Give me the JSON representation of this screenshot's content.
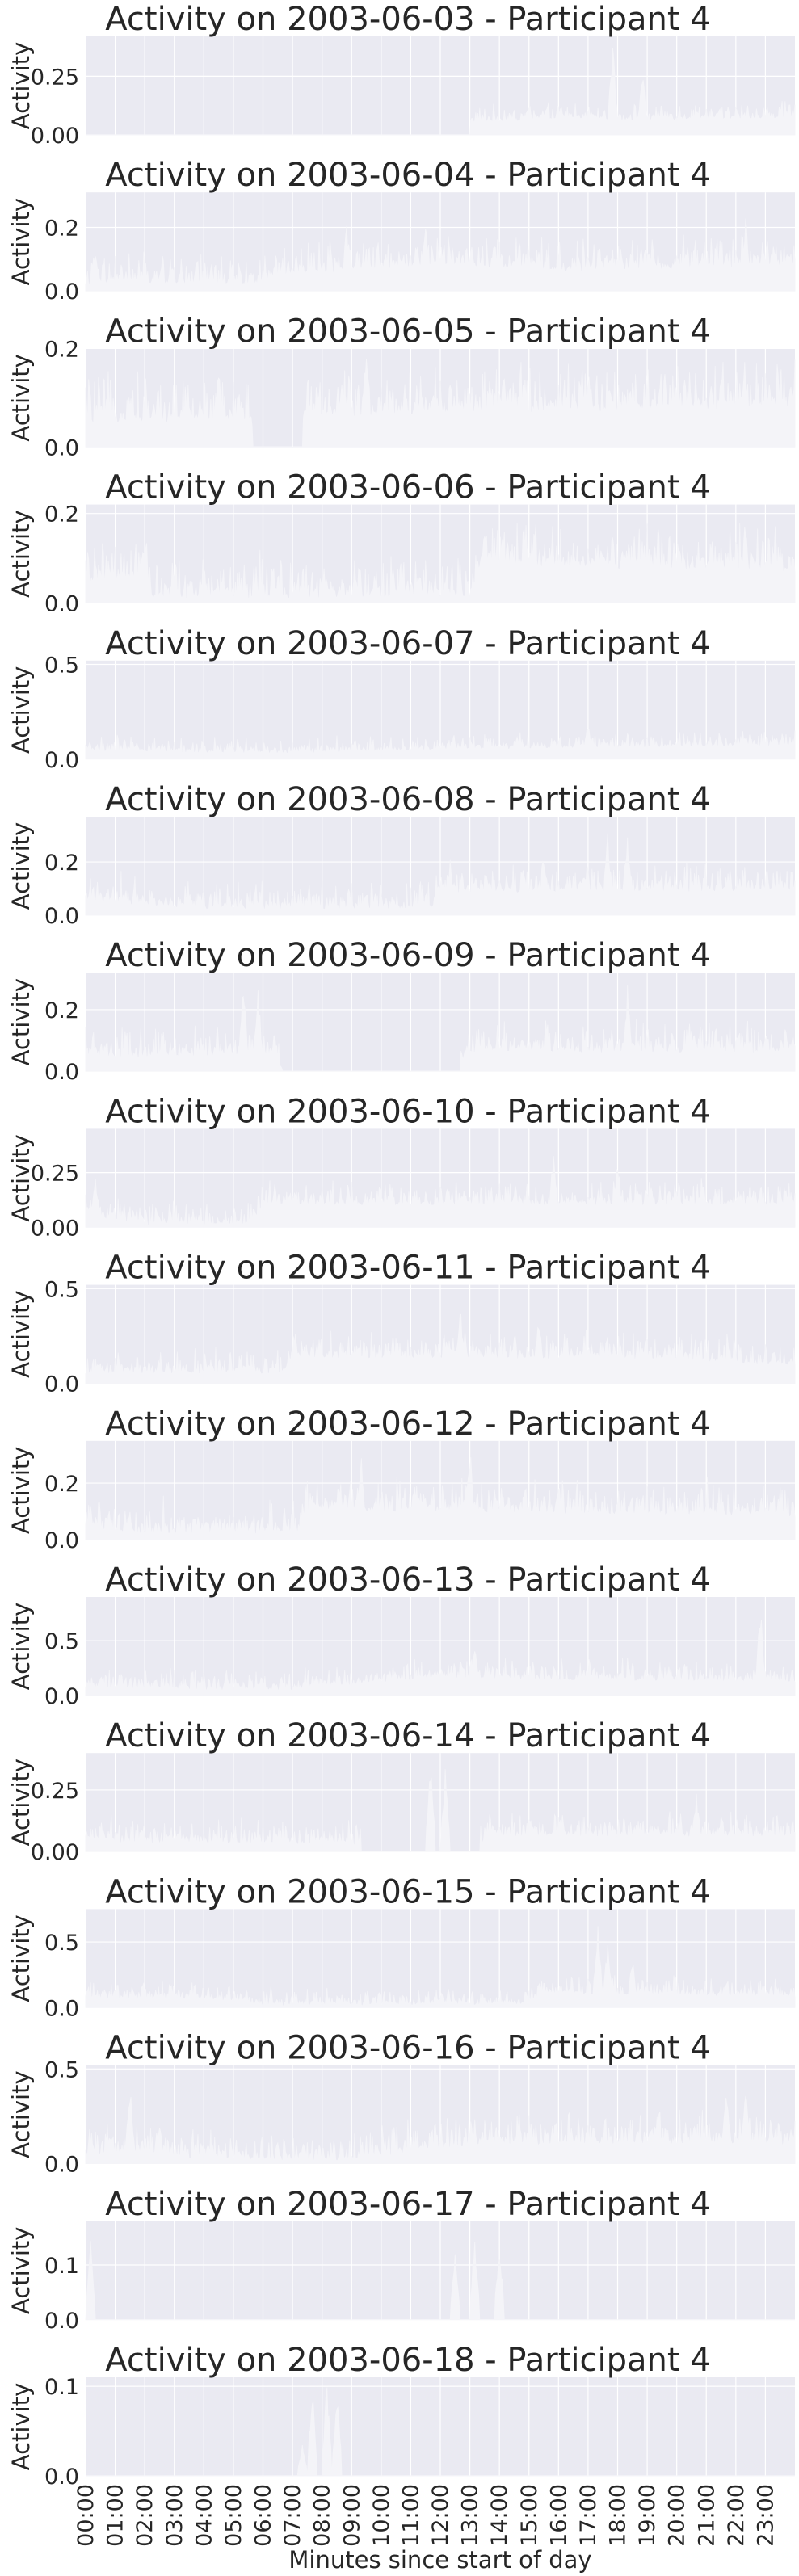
{
  "chart_data": {
    "type": "area",
    "x_tick_labels": [
      "00:00",
      "01:00",
      "02:00",
      "03:00",
      "04:00",
      "05:00",
      "06:00",
      "07:00",
      "08:00",
      "09:00",
      "10:00",
      "11:00",
      "12:00",
      "13:00",
      "14:00",
      "15:00",
      "16:00",
      "17:00",
      "18:00",
      "19:00",
      "20:00",
      "21:00",
      "22:00",
      "23:00"
    ],
    "xlabel": "Minutes since start of day",
    "xlim": [
      0,
      1440
    ],
    "grid": true,
    "colors": {
      "panel_bg": "#eaeaf2",
      "grid": "#ffffff",
      "fill": "#f4f4f8",
      "text": "#262626"
    },
    "panels": [
      {
        "title": "Activity on 2003-06-03 - Participant 4",
        "ylabel": "Activity",
        "ylim": [
          0,
          0.42
        ],
        "yticks": [
          0.0,
          0.25
        ],
        "ytick_labels": [
          "0.00",
          "0.25"
        ],
        "profile": [
          [
            0,
            0
          ],
          [
            780,
            0
          ],
          [
            781,
            0.05
          ],
          [
            1000,
            0.07
          ],
          [
            1100,
            0.06
          ],
          [
            1440,
            0.07
          ]
        ],
        "noise": 0.05,
        "peaks": [
          [
            1070,
            0.4
          ],
          [
            1130,
            0.3
          ],
          [
            900,
            0.15
          ]
        ]
      },
      {
        "title": "Activity on 2003-06-04 - Participant 4",
        "ylabel": "Activity",
        "ylim": [
          0,
          0.31
        ],
        "yticks": [
          0.0,
          0.2
        ],
        "ytick_labels": [
          "0.0",
          "0.2"
        ],
        "profile": [
          [
            0,
            0.02
          ],
          [
            350,
            0.02
          ],
          [
            420,
            0.05
          ],
          [
            700,
            0.08
          ],
          [
            1000,
            0.06
          ],
          [
            1440,
            0.08
          ]
        ],
        "noise": 0.07,
        "peaks": [
          [
            20,
            0.12
          ],
          [
            530,
            0.22
          ],
          [
            690,
            0.25
          ],
          [
            1340,
            0.25
          ]
        ]
      },
      {
        "title": "Activity on 2003-06-05 - Participant 4",
        "ylabel": "Activity",
        "ylim": [
          0,
          0.2
        ],
        "yticks": [
          0.0,
          0.2
        ],
        "ytick_labels": [
          "0.0",
          "0.2"
        ],
        "profile": [
          [
            0,
            0.05
          ],
          [
            330,
            0.05
          ],
          [
            340,
            0
          ],
          [
            440,
            0
          ],
          [
            441,
            0.06
          ],
          [
            1440,
            0.08
          ]
        ],
        "noise": 0.07,
        "peaks": [
          [
            270,
            0.18
          ],
          [
            570,
            0.18
          ],
          [
            820,
            0.14
          ],
          [
            1290,
            0.16
          ]
        ]
      },
      {
        "title": "Activity on 2003-06-06 - Participant 4",
        "ylabel": "Activity",
        "ylim": [
          0,
          0.22
        ],
        "yticks": [
          0.0,
          0.2
        ],
        "ytick_labels": [
          "0.0",
          "0.2"
        ],
        "profile": [
          [
            0,
            0.04
          ],
          [
            120,
            0.05
          ],
          [
            130,
            0.01
          ],
          [
            780,
            0.01
          ],
          [
            800,
            0.08
          ],
          [
            1440,
            0.07
          ]
        ],
        "noise": 0.07,
        "peaks": [
          [
            120,
            0.15
          ],
          [
            810,
            0.18
          ],
          [
            1340,
            0.21
          ]
        ]
      },
      {
        "title": "Activity on 2003-06-07 - Participant 4",
        "ylabel": "Activity",
        "ylim": [
          0,
          0.52
        ],
        "yticks": [
          0.0,
          0.5
        ],
        "ytick_labels": [
          "0.0",
          "0.5"
        ],
        "profile": [
          [
            0,
            0.04
          ],
          [
            400,
            0.03
          ],
          [
            800,
            0.05
          ],
          [
            1440,
            0.07
          ]
        ],
        "noise": 0.06,
        "peaks": [
          [
            1020,
            0.2
          ],
          [
            1110,
            0.12
          ]
        ]
      },
      {
        "title": "Activity on 2003-06-08 - Participant 4",
        "ylabel": "Activity",
        "ylim": [
          0,
          0.37
        ],
        "yticks": [
          0.0,
          0.2
        ],
        "ytick_labels": [
          "0.0",
          "0.2"
        ],
        "profile": [
          [
            0,
            0.05
          ],
          [
            250,
            0.02
          ],
          [
            700,
            0.02
          ],
          [
            720,
            0.08
          ],
          [
            1440,
            0.09
          ]
        ],
        "noise": 0.08,
        "peaks": [
          [
            1060,
            0.35
          ],
          [
            1100,
            0.3
          ],
          [
            740,
            0.22
          ]
        ]
      },
      {
        "title": "Activity on 2003-06-09 - Participant 4",
        "ylabel": "Activity",
        "ylim": [
          0,
          0.32
        ],
        "yticks": [
          0.0,
          0.2
        ],
        "ytick_labels": [
          "0.0",
          "0.2"
        ],
        "profile": [
          [
            0,
            0.04
          ],
          [
            380,
            0.05
          ],
          [
            400,
            0
          ],
          [
            760,
            0
          ],
          [
            770,
            0.06
          ],
          [
            1440,
            0.06
          ]
        ],
        "noise": 0.07,
        "peaks": [
          [
            320,
            0.3
          ],
          [
            350,
            0.28
          ],
          [
            1100,
            0.28
          ]
        ]
      },
      {
        "title": "Activity on 2003-06-10 - Participant 4",
        "ylabel": "Activity",
        "ylim": [
          0,
          0.45
        ],
        "yticks": [
          0.0,
          0.25
        ],
        "ytick_labels": [
          "0.00",
          "0.25"
        ],
        "profile": [
          [
            0,
            0.05
          ],
          [
            120,
            0.01
          ],
          [
            340,
            0.01
          ],
          [
            360,
            0.1
          ],
          [
            1440,
            0.1
          ]
        ],
        "noise": 0.08,
        "peaks": [
          [
            20,
            0.26
          ],
          [
            950,
            0.4
          ],
          [
            1080,
            0.35
          ]
        ]
      },
      {
        "title": "Activity on 2003-06-11 - Participant 4",
        "ylabel": "Activity",
        "ylim": [
          0,
          0.52
        ],
        "yticks": [
          0.0,
          0.5
        ],
        "ytick_labels": [
          "0.0",
          "0.5"
        ],
        "profile": [
          [
            0,
            0.05
          ],
          [
            400,
            0.05
          ],
          [
            420,
            0.13
          ],
          [
            1100,
            0.13
          ],
          [
            1440,
            0.09
          ]
        ],
        "noise": 0.1,
        "peaks": [
          [
            760,
            0.45
          ],
          [
            920,
            0.4
          ]
        ]
      },
      {
        "title": "Activity on 2003-06-12 - Participant 4",
        "ylabel": "Activity",
        "ylim": [
          0,
          0.35
        ],
        "yticks": [
          0.0,
          0.2
        ],
        "ytick_labels": [
          "0.0",
          "0.2"
        ],
        "profile": [
          [
            0,
            0.05
          ],
          [
            60,
            0.02
          ],
          [
            430,
            0.02
          ],
          [
            450,
            0.1
          ],
          [
            1440,
            0.08
          ]
        ],
        "noise": 0.09,
        "peaks": [
          [
            560,
            0.3
          ],
          [
            780,
            0.35
          ],
          [
            960,
            0.22
          ]
        ]
      },
      {
        "title": "Activity on 2003-06-13 - Participant 4",
        "ylabel": "Activity",
        "ylim": [
          0,
          0.9
        ],
        "yticks": [
          0.0,
          0.5
        ],
        "ytick_labels": [
          "0.0",
          "0.5"
        ],
        "profile": [
          [
            0,
            0.07
          ],
          [
            400,
            0.04
          ],
          [
            700,
            0.15
          ],
          [
            1440,
            0.12
          ]
        ],
        "noise": 0.14,
        "peaks": [
          [
            1370,
            0.85
          ],
          [
            790,
            0.45
          ]
        ]
      },
      {
        "title": "Activity on 2003-06-14 - Participant 4",
        "ylabel": "Activity",
        "ylim": [
          0,
          0.4
        ],
        "yticks": [
          0.0,
          0.25
        ],
        "ytick_labels": [
          "0.00",
          "0.25"
        ],
        "profile": [
          [
            0,
            0.05
          ],
          [
            100,
            0.03
          ],
          [
            540,
            0.03
          ],
          [
            560,
            0
          ],
          [
            800,
            0
          ],
          [
            820,
            0.06
          ],
          [
            1440,
            0.06
          ]
        ],
        "noise": 0.07,
        "peaks": [
          [
            700,
            0.38
          ],
          [
            730,
            0.36
          ],
          [
            1240,
            0.25
          ]
        ]
      },
      {
        "title": "Activity on 2003-06-15 - Participant 4",
        "ylabel": "Activity",
        "ylim": [
          0,
          0.75
        ],
        "yticks": [
          0.0,
          0.5
        ],
        "ytick_labels": [
          "0.0",
          "0.5"
        ],
        "profile": [
          [
            0,
            0.07
          ],
          [
            320,
            0.05
          ],
          [
            340,
            0.01
          ],
          [
            900,
            0.02
          ],
          [
            920,
            0.1
          ],
          [
            1440,
            0.08
          ]
        ],
        "noise": 0.1,
        "peaks": [
          [
            1040,
            0.7
          ],
          [
            1060,
            0.55
          ],
          [
            1110,
            0.4
          ]
        ]
      },
      {
        "title": "Activity on 2003-06-16 - Participant 4",
        "ylabel": "Activity",
        "ylim": [
          0,
          0.52
        ],
        "yticks": [
          0.0,
          0.5
        ],
        "ytick_labels": [
          "0.0",
          "0.5"
        ],
        "profile": [
          [
            0,
            0.05
          ],
          [
            300,
            0.02
          ],
          [
            500,
            0.01
          ],
          [
            800,
            0.1
          ],
          [
            1440,
            0.1
          ]
        ],
        "noise": 0.12,
        "peaks": [
          [
            90,
            0.45
          ],
          [
            1300,
            0.45
          ],
          [
            1340,
            0.4
          ]
        ]
      },
      {
        "title": "Activity on 2003-06-17 - Participant 4",
        "ylabel": "Activity",
        "ylim": [
          0,
          0.18
        ],
        "yticks": [
          0.0,
          0.1
        ],
        "ytick_labels": [
          "0.0",
          "0.1"
        ],
        "profile": [
          [
            0,
            0
          ],
          [
            1440,
            0
          ]
        ],
        "noise": 0,
        "peaks": [
          [
            10,
            0.15
          ],
          [
            750,
            0.12
          ],
          [
            790,
            0.16
          ],
          [
            840,
            0.15
          ]
        ]
      },
      {
        "title": "Activity on 2003-06-18 - Participant 4",
        "ylabel": "Activity",
        "ylim": [
          0,
          0.11
        ],
        "yticks": [
          0.0,
          0.1
        ],
        "ytick_labels": [
          "0.0",
          "0.1"
        ],
        "profile": [
          [
            0,
            0
          ],
          [
            1440,
            0
          ]
        ],
        "noise": 0,
        "peaks": [
          [
            440,
            0.04
          ],
          [
            460,
            0.1
          ],
          [
            490,
            0.11
          ],
          [
            510,
            0.1
          ]
        ]
      }
    ]
  }
}
